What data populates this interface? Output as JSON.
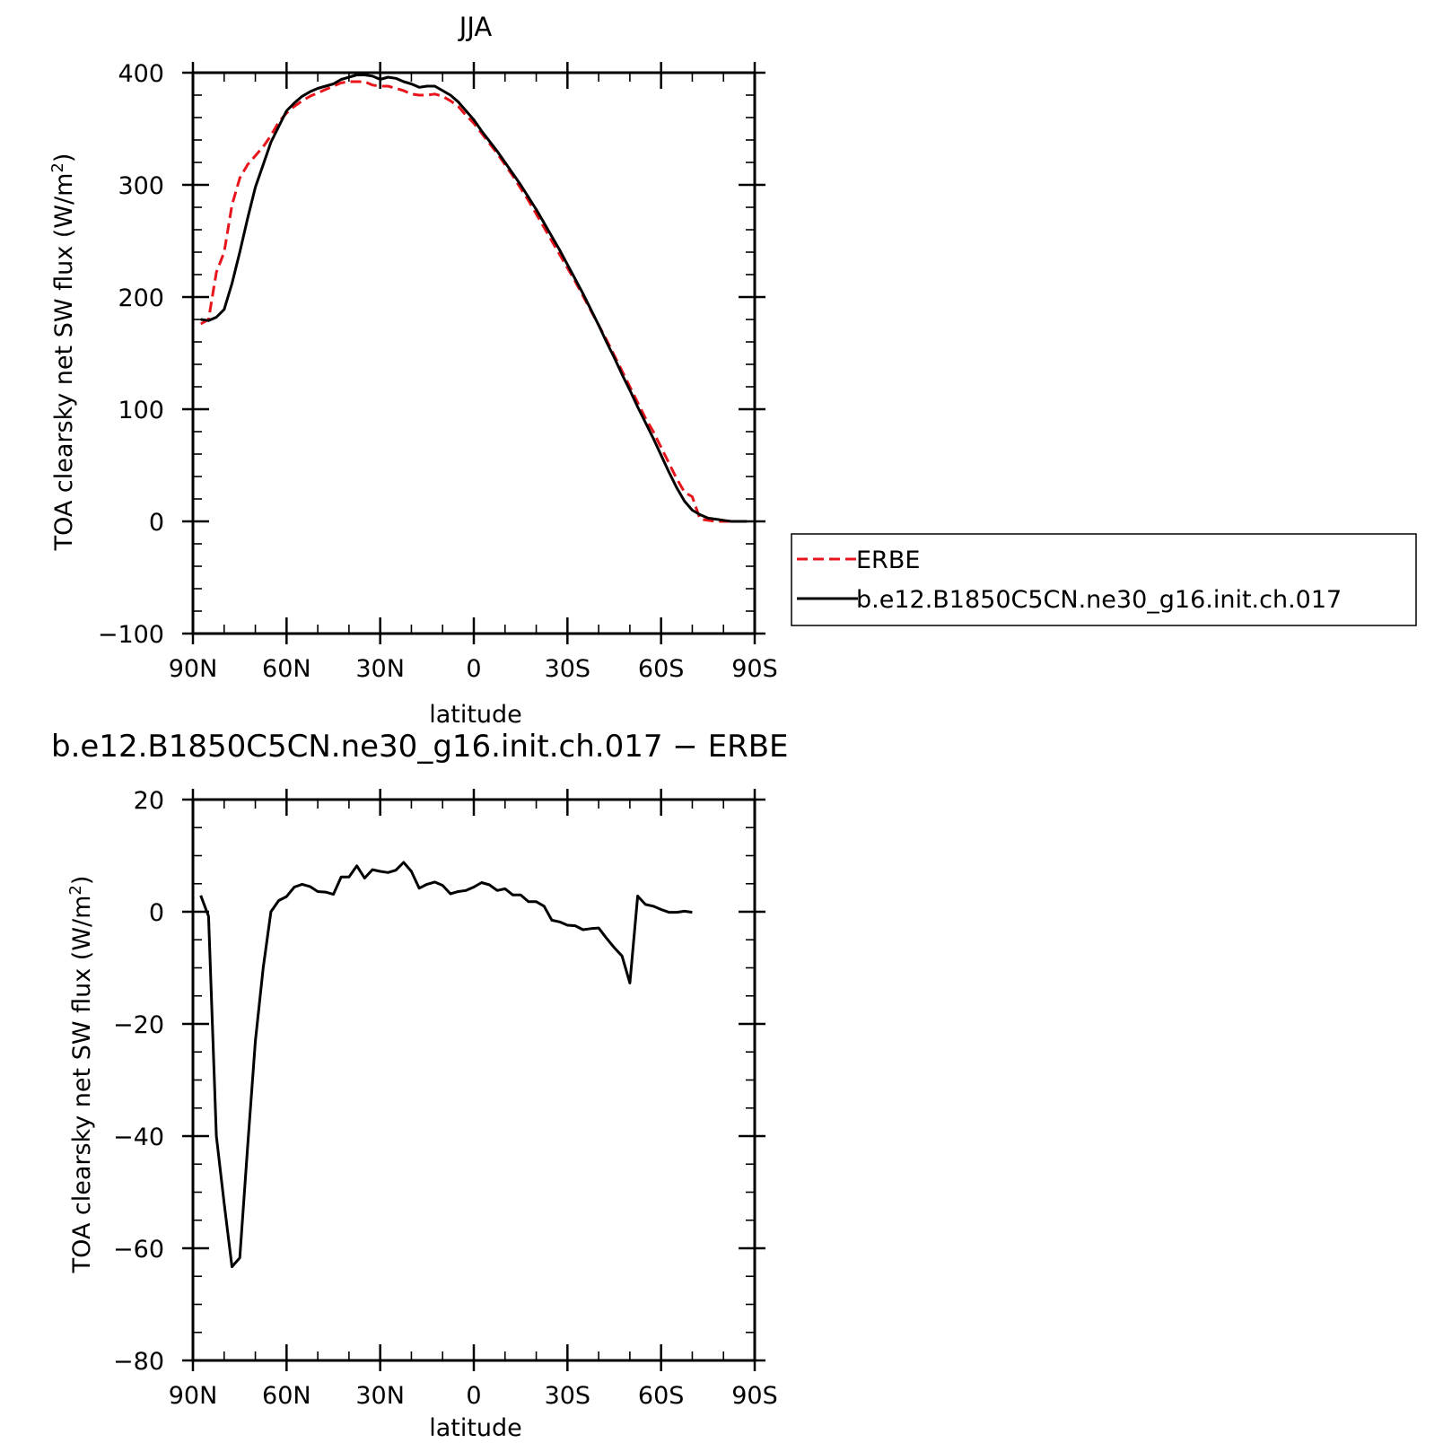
{
  "chart_data": [
    {
      "type": "line",
      "title": "JJA",
      "xlabel": "latitude",
      "ylabel": "TOA clearsky net SW flux (W/m",
      "ylabel_sup": "2",
      "ylabel_close": ")",
      "xlim": [
        90,
        -90
      ],
      "ylim": [
        -100,
        400
      ],
      "x_ticks": [
        {
          "value": 90,
          "label": "90N"
        },
        {
          "value": 60,
          "label": "60N"
        },
        {
          "value": 30,
          "label": "30N"
        },
        {
          "value": 0,
          "label": "0"
        },
        {
          "value": -30,
          "label": "30S"
        },
        {
          "value": -60,
          "label": "60S"
        },
        {
          "value": -90,
          "label": "90S"
        }
      ],
      "y_ticks": [
        {
          "value": 400,
          "label": "400"
        },
        {
          "value": 300,
          "label": "300"
        },
        {
          "value": 200,
          "label": "200"
        },
        {
          "value": 100,
          "label": "100"
        },
        {
          "value": 0,
          "label": "0"
        },
        {
          "value": -100,
          "label": "−100"
        }
      ],
      "legend_position": "right",
      "series": [
        {
          "name": "ERBE",
          "color": "#e8141b",
          "dash": "dashed",
          "points": [
            [
              87.5,
              176
            ],
            [
              85,
              180
            ],
            [
              82.5,
              222
            ],
            [
              80,
              240
            ],
            [
              77.5,
              282
            ],
            [
              75,
              306
            ],
            [
              72.5,
              318
            ],
            [
              70,
              326
            ],
            [
              67.5,
              334
            ],
            [
              65,
              344
            ],
            [
              62.5,
              356
            ],
            [
              60,
              364
            ],
            [
              57.5,
              370
            ],
            [
              55,
              375
            ],
            [
              52.5,
              379
            ],
            [
              50,
              382
            ],
            [
              47.5,
              385
            ],
            [
              45,
              388
            ],
            [
              42.5,
              391
            ],
            [
              40,
              392
            ],
            [
              37.5,
              392
            ],
            [
              35,
              392
            ],
            [
              32.5,
              389
            ],
            [
              30,
              388
            ],
            [
              27.5,
              388
            ],
            [
              25,
              386
            ],
            [
              22.5,
              384
            ],
            [
              20,
              381
            ],
            [
              17.5,
              380
            ],
            [
              15,
              380
            ],
            [
              12.5,
              381
            ],
            [
              10,
              379
            ],
            [
              7.5,
              375
            ],
            [
              5,
              370
            ],
            [
              2.5,
              362
            ],
            [
              0,
              355
            ],
            [
              -2.5,
              346
            ],
            [
              -5,
              337
            ],
            [
              -7.5,
              328
            ],
            [
              -10,
              318
            ],
            [
              -12.5,
              308
            ],
            [
              -15,
              297
            ],
            [
              -17.5,
              286
            ],
            [
              -20,
              274
            ],
            [
              -22.5,
              262
            ],
            [
              -25,
              250
            ],
            [
              -27.5,
              238
            ],
            [
              -30,
              226
            ],
            [
              -32.5,
              214
            ],
            [
              -35,
              201
            ],
            [
              -37.5,
              188
            ],
            [
              -40,
              175
            ],
            [
              -42.5,
              162
            ],
            [
              -45,
              148
            ],
            [
              -47.5,
              134
            ],
            [
              -50,
              120
            ],
            [
              -52.5,
              106
            ],
            [
              -55,
              92
            ],
            [
              -57.5,
              80
            ],
            [
              -60,
              66
            ],
            [
              -62.5,
              52
            ],
            [
              -65,
              38
            ],
            [
              -67.5,
              26
            ],
            [
              -70,
              22
            ],
            [
              -72.5,
              2
            ],
            [
              -75,
              1
            ],
            [
              -77.5,
              0
            ],
            [
              -80,
              0
            ],
            [
              -82.5,
              0
            ],
            [
              -85,
              0
            ],
            [
              -87.5,
              0
            ]
          ]
        },
        {
          "name": "b.e12.B1850C5CN.ne30_g16.init.ch.017",
          "color": "#000000",
          "dash": "solid",
          "points": [
            [
              87.5,
              180
            ],
            [
              85,
              179
            ],
            [
              82.5,
              182
            ],
            [
              80,
              189
            ],
            [
              77.5,
              212
            ],
            [
              75,
              240
            ],
            [
              72.5,
              270
            ],
            [
              70,
              298
            ],
            [
              67.5,
              318
            ],
            [
              65,
              338
            ],
            [
              62.5,
              352
            ],
            [
              60,
              366
            ],
            [
              57.5,
              373
            ],
            [
              55,
              379
            ],
            [
              52.5,
              383
            ],
            [
              50,
              386
            ],
            [
              47.5,
              388
            ],
            [
              45,
              390
            ],
            [
              42.5,
              394
            ],
            [
              40,
              396
            ],
            [
              37.5,
              398
            ],
            [
              35,
              398
            ],
            [
              32.5,
              397
            ],
            [
              30,
              394
            ],
            [
              27.5,
              396
            ],
            [
              25,
              395
            ],
            [
              22.5,
              392
            ],
            [
              20,
              390
            ],
            [
              17.5,
              387
            ],
            [
              15,
              388
            ],
            [
              12.5,
              388
            ],
            [
              10,
              384
            ],
            [
              7.5,
              380
            ],
            [
              5,
              374
            ],
            [
              2.5,
              366
            ],
            [
              0,
              358
            ],
            [
              -2.5,
              348
            ],
            [
              -5,
              339
            ],
            [
              -7.5,
              330
            ],
            [
              -10,
              320
            ],
            [
              -12.5,
              310
            ],
            [
              -15,
              300
            ],
            [
              -17.5,
              289
            ],
            [
              -20,
              278
            ],
            [
              -22.5,
              266
            ],
            [
              -25,
              254
            ],
            [
              -27.5,
              242
            ],
            [
              -30,
              229
            ],
            [
              -32.5,
              216
            ],
            [
              -35,
              203
            ],
            [
              -37.5,
              189
            ],
            [
              -40,
              175
            ],
            [
              -42.5,
              160
            ],
            [
              -45,
              146
            ],
            [
              -47.5,
              131
            ],
            [
              -50,
              117
            ],
            [
              -52.5,
              102
            ],
            [
              -55,
              88
            ],
            [
              -57.5,
              74
            ],
            [
              -60,
              59
            ],
            [
              -62.5,
              44
            ],
            [
              -65,
              30
            ],
            [
              -67.5,
              18
            ],
            [
              -70,
              10
            ],
            [
              -72.5,
              6
            ],
            [
              -75,
              3
            ],
            [
              -77.5,
              2
            ],
            [
              -80,
              1
            ],
            [
              -82.5,
              0
            ],
            [
              -85,
              0
            ],
            [
              -87.5,
              0
            ]
          ]
        }
      ]
    },
    {
      "type": "line",
      "title": "b.e12.B1850C5CN.ne30_g16.init.ch.017 − ERBE",
      "xlabel": "latitude",
      "ylabel": "TOA clearsky net SW flux (W/m",
      "ylabel_sup": "2",
      "ylabel_close": ")",
      "xlim": [
        90,
        -90
      ],
      "ylim": [
        -80,
        20
      ],
      "x_ticks": [
        {
          "value": 90,
          "label": "90N"
        },
        {
          "value": 60,
          "label": "60N"
        },
        {
          "value": 30,
          "label": "30N"
        },
        {
          "value": 0,
          "label": "0"
        },
        {
          "value": -30,
          "label": "30S"
        },
        {
          "value": -60,
          "label": "60S"
        },
        {
          "value": -90,
          "label": "90S"
        }
      ],
      "y_ticks": [
        {
          "value": 20,
          "label": "20"
        },
        {
          "value": 0,
          "label": "0"
        },
        {
          "value": -20,
          "label": "−20"
        },
        {
          "value": -40,
          "label": "−40"
        },
        {
          "value": -60,
          "label": "−60"
        },
        {
          "value": -80,
          "label": "−80"
        }
      ],
      "series": [
        {
          "color": "#000000",
          "dash": "solid",
          "points": [
            [
              87.5,
              2.9
            ],
            [
              85,
              -0.8
            ],
            [
              82.5,
              -40
            ],
            [
              80,
              -52
            ],
            [
              77.5,
              -63.3
            ],
            [
              75,
              -61.7
            ],
            [
              72.5,
              -42
            ],
            [
              70,
              -23
            ],
            [
              67.5,
              -10
            ],
            [
              65,
              0
            ],
            [
              62.5,
              2
            ],
            [
              60,
              2.7
            ],
            [
              57.5,
              4.4
            ],
            [
              55,
              4.9
            ],
            [
              52.5,
              4.5
            ],
            [
              50,
              3.6
            ],
            [
              47.5,
              3.5
            ],
            [
              45,
              3.1
            ],
            [
              42.5,
              6.2
            ],
            [
              40,
              6.2
            ],
            [
              37.5,
              8.2
            ],
            [
              35,
              6
            ],
            [
              32.5,
              7.5
            ],
            [
              30,
              7.2
            ],
            [
              27.5,
              7
            ],
            [
              25,
              7.4
            ],
            [
              22.5,
              8.8
            ],
            [
              20,
              7.2
            ],
            [
              17.5,
              4.2
            ],
            [
              15,
              4.9
            ],
            [
              12.5,
              5.3
            ],
            [
              10,
              4.7
            ],
            [
              7.5,
              3.2
            ],
            [
              5,
              3.6
            ],
            [
              2.5,
              3.8
            ],
            [
              0,
              4.4
            ],
            [
              -2.5,
              5.2
            ],
            [
              -5,
              4.8
            ],
            [
              -7.5,
              3.8
            ],
            [
              -10,
              4.1
            ],
            [
              -12.5,
              3
            ],
            [
              -15,
              3
            ],
            [
              -17.5,
              1.8
            ],
            [
              -20,
              1.8
            ],
            [
              -22.5,
              1
            ],
            [
              -25,
              -1.5
            ],
            [
              -27.5,
              -1.8
            ],
            [
              -30,
              -2.4
            ],
            [
              -32.5,
              -2.5
            ],
            [
              -35,
              -3.2
            ],
            [
              -37.5,
              -3
            ],
            [
              -40,
              -2.9
            ],
            [
              -42.5,
              -4.7
            ],
            [
              -45,
              -6.4
            ],
            [
              -47.5,
              -7.9
            ],
            [
              -50,
              -12.7
            ],
            [
              -52.5,
              2.8
            ],
            [
              -55,
              1.3
            ],
            [
              -57.5,
              1
            ],
            [
              -60,
              0.4
            ],
            [
              -62.5,
              -0.1
            ],
            [
              -65,
              -0.1
            ],
            [
              -67.5,
              0.1
            ],
            [
              -70,
              -0.1
            ]
          ]
        }
      ]
    }
  ]
}
